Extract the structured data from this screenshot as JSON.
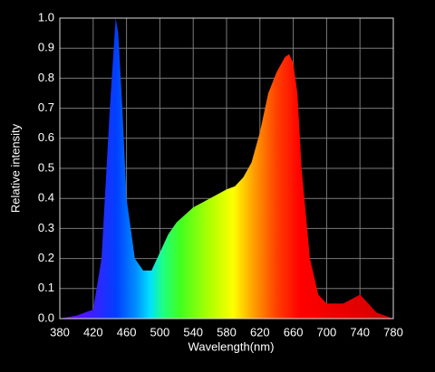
{
  "chart_data": {
    "type": "area",
    "xlabel": "Wavelength(nm)",
    "ylabel": "Relative intensity",
    "x": [
      380,
      400,
      420,
      430,
      440,
      447,
      450,
      455,
      460,
      470,
      480,
      490,
      500,
      510,
      520,
      540,
      560,
      580,
      590,
      600,
      610,
      620,
      630,
      640,
      650,
      655,
      660,
      665,
      670,
      680,
      690,
      700,
      720,
      740,
      750,
      760,
      780
    ],
    "values": [
      0.0,
      0.01,
      0.03,
      0.2,
      0.7,
      1.0,
      0.95,
      0.7,
      0.4,
      0.2,
      0.16,
      0.16,
      0.22,
      0.28,
      0.32,
      0.37,
      0.4,
      0.43,
      0.44,
      0.47,
      0.52,
      0.62,
      0.75,
      0.82,
      0.87,
      0.88,
      0.85,
      0.75,
      0.5,
      0.2,
      0.08,
      0.05,
      0.05,
      0.08,
      0.05,
      0.02,
      0.0
    ],
    "xlim": [
      380,
      780
    ],
    "ylim": [
      0,
      1
    ],
    "xticks": [
      380,
      420,
      460,
      500,
      540,
      580,
      620,
      660,
      700,
      740,
      780
    ],
    "yticks": [
      {
        "value": 0,
        "label": "0.0"
      },
      0.1,
      0.2,
      0.3,
      0.4,
      0.5,
      0.6,
      0.7,
      0.8,
      0.9,
      {
        "value": 1,
        "label": "1.0"
      }
    ],
    "grid": true
  }
}
